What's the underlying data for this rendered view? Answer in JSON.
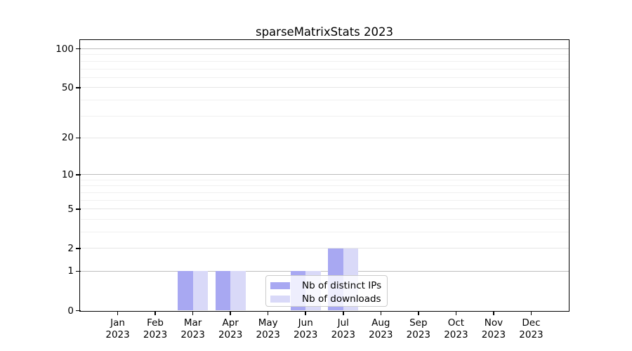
{
  "chart_data": {
    "type": "bar",
    "title": "sparseMatrixStats 2023",
    "x_axis": {
      "months": [
        "Jan",
        "Feb",
        "Mar",
        "Apr",
        "May",
        "Jun",
        "Jul",
        "Aug",
        "Sep",
        "Oct",
        "Nov",
        "Dec"
      ],
      "year": "2023"
    },
    "y_axis": {
      "scale": "log1p",
      "ylim": [
        0,
        117
      ],
      "major_ticks": [
        0,
        1,
        2,
        5,
        10,
        20,
        50,
        100
      ],
      "minor_ticks": [
        3,
        4,
        6,
        7,
        8,
        9,
        30,
        40,
        60,
        70,
        80,
        90
      ],
      "grid": true
    },
    "series": [
      {
        "name": "Nb of distinct IPs",
        "color": "#a8a8f2",
        "values": [
          0,
          0,
          1,
          1,
          0,
          1,
          2,
          0,
          0,
          0,
          0,
          0
        ]
      },
      {
        "name": "Nb of downloads",
        "color": "#d9d9f8",
        "values": [
          0,
          0,
          1,
          1,
          0,
          1,
          2,
          0,
          0,
          0,
          0,
          0
        ]
      }
    ],
    "legend": {
      "position": "lower center"
    }
  },
  "colors": {
    "background": "#ffffff",
    "spine": "#000000",
    "text": "#000000",
    "grid_decade": "#bdbdbd",
    "grid_major": "#e6e6e6",
    "grid_minor": "#f0f0f0",
    "legend_border": "#cccccc"
  }
}
